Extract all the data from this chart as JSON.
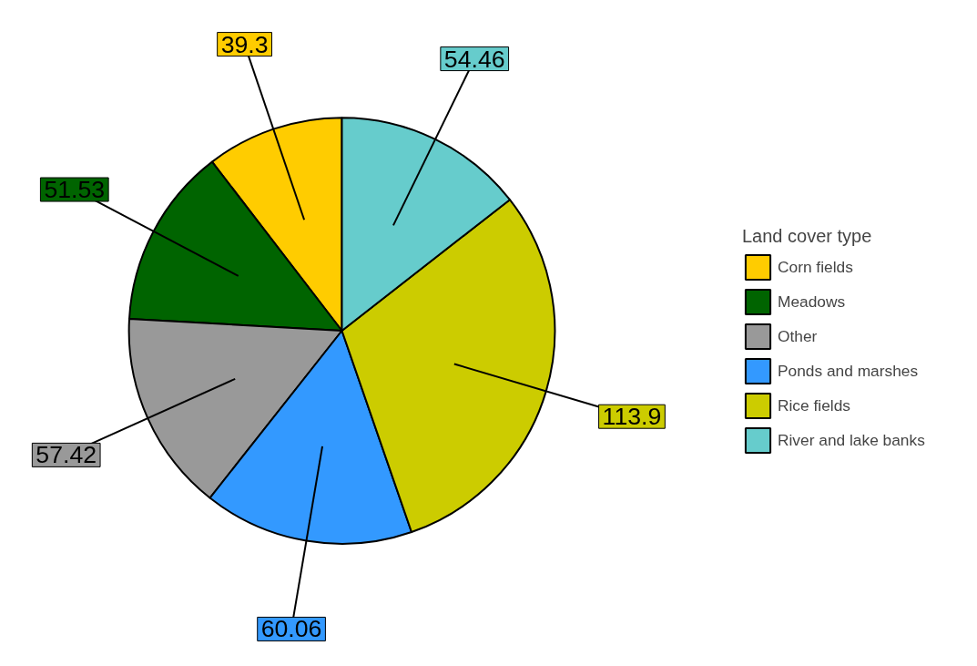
{
  "chart_data": {
    "type": "pie",
    "legend_title": "Land cover type",
    "legend": "right",
    "data_labels": true,
    "categories": [
      "Corn fields",
      "Meadows",
      "Other",
      "Ponds and marshes",
      "Rice fields",
      "River and lake banks"
    ],
    "values": [
      39.3,
      51.53,
      57.42,
      60.06,
      113.9,
      54.46
    ],
    "colors": [
      "#ffcc00",
      "#006400",
      "#999999",
      "#3399ff",
      "#cccc00",
      "#66cccc"
    ]
  }
}
